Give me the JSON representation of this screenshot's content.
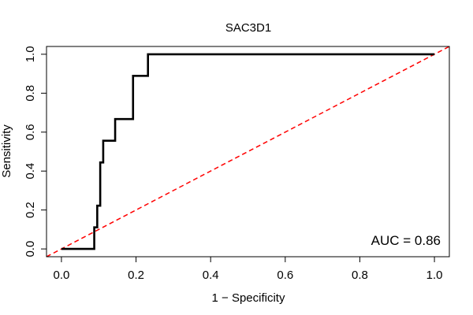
{
  "chart_data": {
    "type": "line",
    "title": "SAC3D1",
    "xlabel": "1 − Specificity",
    "ylabel": "Sensitivity",
    "xlim": [
      -0.04,
      1.04
    ],
    "ylim": [
      -0.04,
      1.04
    ],
    "xticks": [
      0.0,
      0.2,
      0.4,
      0.6,
      0.8,
      1.0
    ],
    "yticks": [
      0.0,
      0.2,
      0.4,
      0.6,
      0.8,
      1.0
    ],
    "xtick_labels": [
      "0.0",
      "0.2",
      "0.4",
      "0.6",
      "0.8",
      "1.0"
    ],
    "ytick_labels": [
      "0.0",
      "0.2",
      "0.4",
      "0.6",
      "0.8",
      "1.0"
    ],
    "grid": false,
    "annotation": "AUC = 0.86",
    "series": [
      {
        "name": "ROC curve",
        "color": "#000000",
        "style": "step",
        "x": [
          0.0,
          0.088,
          0.088,
          0.096,
          0.096,
          0.104,
          0.104,
          0.112,
          0.112,
          0.144,
          0.144,
          0.192,
          0.192,
          0.232,
          0.232,
          1.0
        ],
        "y": [
          0.0,
          0.0,
          0.111,
          0.111,
          0.222,
          0.222,
          0.444,
          0.444,
          0.556,
          0.556,
          0.667,
          0.667,
          0.889,
          0.889,
          1.0,
          1.0
        ]
      },
      {
        "name": "Reference line",
        "color": "#ff0000",
        "style": "dashed",
        "x": [
          -0.04,
          1.04
        ],
        "y": [
          -0.04,
          1.04
        ]
      }
    ]
  }
}
